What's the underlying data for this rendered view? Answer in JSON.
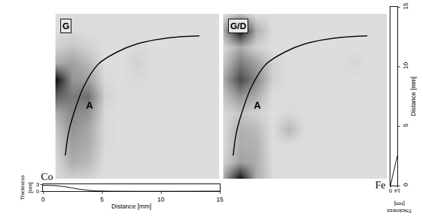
{
  "chart_data": [
    {
      "type": "heatmap",
      "title": "G",
      "tick_labels": false,
      "x": [
        0,
        1.5,
        3,
        4.5,
        6,
        7.5,
        9,
        10.5,
        12,
        13.5,
        15
      ],
      "y": [
        0,
        1.5,
        3,
        4.5,
        6,
        7.5,
        9,
        10.5,
        12,
        13.5,
        15
      ],
      "xlim": [
        0,
        15
      ],
      "ylim": [
        0,
        15
      ],
      "zlim": [
        0,
        1
      ],
      "cells": [
        [
          0.12,
          0.15,
          0.14,
          0.1,
          0.1,
          0.1,
          0.1,
          0.1,
          0.1,
          0.1,
          0.1
        ],
        [
          0.12,
          0.3,
          0.25,
          0.1,
          0.1,
          0.1,
          0.1,
          0.1,
          0.1,
          0.1,
          0.1
        ],
        [
          0.15,
          0.35,
          0.3,
          0.12,
          0.1,
          0.1,
          0.1,
          0.1,
          0.1,
          0.1,
          0.1
        ],
        [
          0.2,
          0.4,
          0.32,
          0.12,
          0.1,
          0.1,
          0.1,
          0.1,
          0.1,
          0.1,
          0.1
        ],
        [
          0.3,
          0.45,
          0.4,
          0.12,
          0.1,
          0.1,
          0.1,
          0.1,
          0.1,
          0.1,
          0.1
        ],
        [
          0.6,
          0.5,
          0.55,
          0.15,
          0.1,
          0.1,
          0.1,
          0.1,
          0.1,
          0.1,
          0.1
        ],
        [
          0.95,
          0.4,
          0.35,
          0.12,
          0.1,
          0.12,
          0.1,
          0.1,
          0.1,
          0.1,
          0.1
        ],
        [
          0.3,
          0.35,
          0.25,
          0.1,
          0.1,
          0.15,
          0.1,
          0.1,
          0.1,
          0.1,
          0.1
        ],
        [
          0.15,
          0.2,
          0.15,
          0.1,
          0.1,
          0.12,
          0.1,
          0.1,
          0.1,
          0.1,
          0.1
        ],
        [
          0.1,
          0.12,
          0.1,
          0.1,
          0.1,
          0.1,
          0.1,
          0.1,
          0.1,
          0.1,
          0.1
        ],
        [
          0.1,
          0.1,
          0.1,
          0.1,
          0.1,
          0.1,
          0.1,
          0.1,
          0.1,
          0.1,
          0.1
        ]
      ],
      "series": [
        {
          "type": "line",
          "color": "#000000",
          "x": [
            0.9,
            1.2,
            1.7,
            2.6,
            3.9,
            5.6,
            7.6,
            10.2,
            13.2
          ],
          "y": [
            2.1,
            4.2,
            6.0,
            8.4,
            10.4,
            11.5,
            12.3,
            12.8,
            13.0
          ]
        }
      ],
      "annotations": [
        {
          "text": "A",
          "x": 2.7,
          "y": 6.7
        }
      ]
    },
    {
      "type": "heatmap",
      "title": "G/D",
      "tick_labels": false,
      "x": [
        0,
        1.5,
        3,
        4.5,
        6,
        7.5,
        9,
        10.5,
        12,
        13.5,
        15
      ],
      "y": [
        0,
        1.5,
        3,
        4.5,
        6,
        7.5,
        9,
        10.5,
        12,
        13.5,
        15
      ],
      "xlim": [
        0,
        15
      ],
      "ylim": [
        0,
        15
      ],
      "zlim": [
        0,
        1
      ],
      "cells": [
        [
          0.3,
          0.95,
          0.3,
          0.12,
          0.1,
          0.1,
          0.1,
          0.1,
          0.1,
          0.1,
          0.1
        ],
        [
          0.15,
          0.35,
          0.3,
          0.1,
          0.1,
          0.1,
          0.1,
          0.1,
          0.1,
          0.1,
          0.1
        ],
        [
          0.12,
          0.3,
          0.28,
          0.1,
          0.1,
          0.1,
          0.1,
          0.1,
          0.1,
          0.1,
          0.1
        ],
        [
          0.12,
          0.28,
          0.25,
          0.1,
          0.25,
          0.1,
          0.1,
          0.1,
          0.1,
          0.1,
          0.1
        ],
        [
          0.12,
          0.2,
          0.15,
          0.1,
          0.12,
          0.1,
          0.1,
          0.1,
          0.1,
          0.1,
          0.1
        ],
        [
          0.2,
          0.4,
          0.3,
          0.1,
          0.1,
          0.1,
          0.1,
          0.1,
          0.1,
          0.1,
          0.1
        ],
        [
          0.3,
          0.7,
          0.45,
          0.15,
          0.1,
          0.1,
          0.1,
          0.1,
          0.1,
          0.1,
          0.1
        ],
        [
          0.2,
          0.5,
          0.35,
          0.15,
          0.1,
          0.1,
          0.1,
          0.1,
          0.13,
          0.1,
          0.1
        ],
        [
          0.12,
          0.3,
          0.15,
          0.1,
          0.1,
          0.1,
          0.1,
          0.1,
          0.1,
          0.1,
          0.1
        ],
        [
          0.3,
          0.95,
          0.3,
          0.1,
          0.1,
          0.1,
          0.1,
          0.1,
          0.1,
          0.1,
          0.1
        ],
        [
          0.1,
          0.2,
          0.1,
          0.1,
          0.1,
          0.1,
          0.1,
          0.1,
          0.1,
          0.1,
          0.1
        ]
      ],
      "series": [
        {
          "type": "line",
          "color": "#000000",
          "x": [
            0.9,
            1.2,
            1.7,
            2.6,
            3.9,
            5.6,
            7.6,
            10.2,
            13.2
          ],
          "y": [
            2.1,
            4.2,
            6.0,
            8.4,
            10.4,
            11.5,
            12.3,
            12.8,
            13.0
          ]
        }
      ],
      "annotations": [
        {
          "text": "A",
          "x": 2.7,
          "y": 6.7
        }
      ]
    },
    {
      "type": "line",
      "title": "Co",
      "color": "#000000",
      "x": [
        0,
        1,
        2,
        3,
        4,
        5,
        15
      ],
      "values": [
        2.5,
        2.4,
        1.8,
        0.9,
        0.3,
        0.05,
        0
      ],
      "xlim": [
        0,
        15
      ],
      "xticks": [
        0,
        5,
        10,
        15
      ],
      "ylim": [
        0,
        3
      ],
      "yticks": [
        0,
        3
      ],
      "xlabel": "Distance [mm]",
      "ylabel": "Thickness [nm]"
    },
    {
      "type": "line",
      "title": "Fe",
      "color": "#000000",
      "x": [
        0,
        14
      ],
      "y": [
        0,
        2.5
      ],
      "xlim": [
        0,
        14
      ],
      "xticks": [
        0,
        14
      ],
      "ylim": [
        0,
        15
      ],
      "yticks": [
        0,
        5,
        10,
        15
      ],
      "xlabel": "Thickness [nm]",
      "ylabel": "Distance [mm]"
    }
  ]
}
